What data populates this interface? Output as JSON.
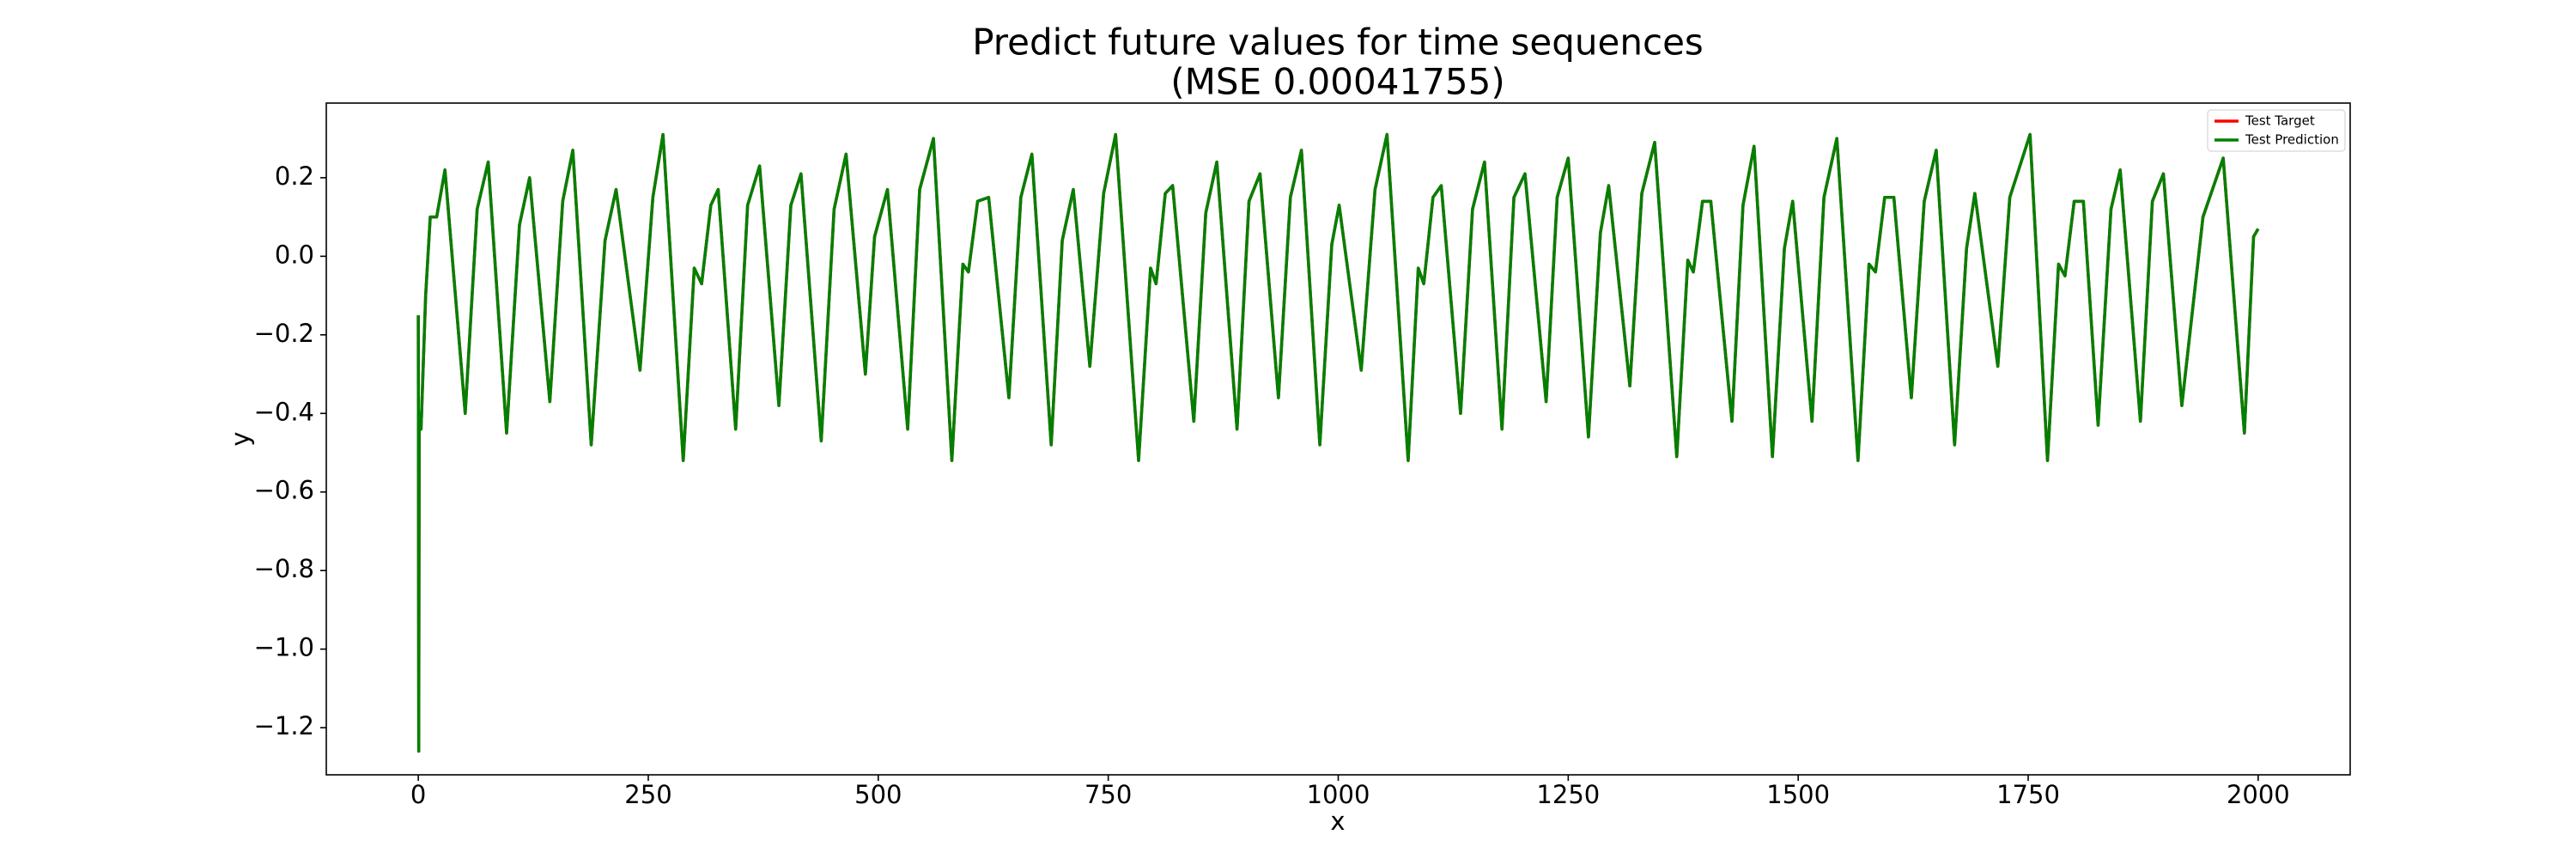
{
  "chart_data": {
    "type": "line",
    "title": "Predict future values for time sequences",
    "subtitle": "(MSE 0.00041755)",
    "x_label": "x",
    "y_label": "y",
    "xlim": [
      -100,
      2100
    ],
    "ylim": [
      -1.32,
      0.39
    ],
    "xticks": [
      0,
      250,
      500,
      750,
      1000,
      1250,
      1500,
      1750,
      2000
    ],
    "yticks": [
      {
        "value": -1.2,
        "label": "−1.2"
      },
      {
        "value": -1.0,
        "label": "−1.0"
      },
      {
        "value": -0.8,
        "label": "−0.8"
      },
      {
        "value": -0.6,
        "label": "−0.6"
      },
      {
        "value": -0.4,
        "label": "−0.4"
      },
      {
        "value": -0.2,
        "label": "−0.2"
      },
      {
        "value": 0,
        "label": "0.0"
      },
      0.2
    ],
    "legend": "upper right",
    "x": [
      0,
      0.5,
      1,
      3,
      8,
      13,
      20,
      29,
      51,
      64,
      76,
      96,
      110,
      121,
      143,
      157,
      168,
      188,
      203,
      215,
      241,
      255,
      266,
      288,
      300,
      308,
      318,
      326,
      345,
      358,
      371,
      392,
      405,
      416,
      438,
      452,
      465,
      486,
      496,
      510,
      532,
      545,
      560,
      580,
      592,
      598,
      608,
      620,
      642,
      655,
      667,
      688,
      700,
      712,
      730,
      745,
      758,
      783,
      796,
      802,
      812,
      820,
      843,
      856,
      868,
      890,
      903,
      915,
      935,
      948,
      960,
      980,
      993,
      1001,
      1025,
      1040,
      1053,
      1076,
      1087,
      1093,
      1103,
      1112,
      1133,
      1146,
      1159,
      1178,
      1191,
      1203,
      1226,
      1238,
      1250,
      1272,
      1285,
      1294,
      1317,
      1330,
      1344,
      1368,
      1380,
      1386,
      1396,
      1405,
      1428,
      1440,
      1452,
      1472,
      1485,
      1494,
      1515,
      1528,
      1542,
      1565,
      1577,
      1584,
      1594,
      1604,
      1623,
      1637,
      1650,
      1670,
      1683,
      1692,
      1717,
      1730,
      1752,
      1771,
      1783,
      1790,
      1800,
      1810,
      1826,
      1840,
      1850,
      1872,
      1885,
      1897,
      1917,
      1940,
      1962,
      1985,
      1995,
      2000
    ],
    "series": [
      {
        "name": "Test Target",
        "color": "#ff0000",
        "values": [
          -0.15,
          -1.26,
          -0.4,
          -0.44,
          -0.1,
          0.1,
          0.1,
          0.22,
          -0.4,
          0.12,
          0.24,
          -0.45,
          0.08,
          0.2,
          -0.37,
          0.14,
          0.27,
          -0.48,
          0.04,
          0.17,
          -0.29,
          0.15,
          0.31,
          -0.52,
          -0.03,
          -0.07,
          0.13,
          0.17,
          -0.44,
          0.13,
          0.23,
          -0.38,
          0.13,
          0.21,
          -0.47,
          0.12,
          0.26,
          -0.3,
          0.05,
          0.17,
          -0.44,
          0.17,
          0.3,
          -0.52,
          -0.02,
          -0.04,
          0.14,
          0.15,
          -0.36,
          0.15,
          0.26,
          -0.48,
          0.04,
          0.17,
          -0.28,
          0.16,
          0.31,
          -0.52,
          -0.03,
          -0.07,
          0.16,
          0.18,
          -0.42,
          0.11,
          0.24,
          -0.44,
          0.14,
          0.21,
          -0.36,
          0.15,
          0.27,
          -0.48,
          0.03,
          0.13,
          -0.29,
          0.17,
          0.31,
          -0.52,
          -0.03,
          -0.07,
          0.15,
          0.18,
          -0.4,
          0.12,
          0.24,
          -0.44,
          0.15,
          0.21,
          -0.37,
          0.15,
          0.25,
          -0.46,
          0.06,
          0.18,
          -0.33,
          0.16,
          0.29,
          -0.51,
          -0.01,
          -0.04,
          0.14,
          0.14,
          -0.42,
          0.13,
          0.28,
          -0.51,
          0.02,
          0.14,
          -0.42,
          0.15,
          0.3,
          -0.52,
          -0.02,
          -0.04,
          0.15,
          0.15,
          -0.36,
          0.14,
          0.27,
          -0.48,
          0.02,
          0.16,
          -0.28,
          0.15,
          0.31,
          -0.52,
          -0.02,
          -0.05,
          0.14,
          0.14,
          -0.43,
          0.12,
          0.22,
          -0.42,
          0.14,
          0.21,
          -0.38,
          0.1,
          0.25,
          -0.45,
          0.05,
          0.07
        ]
      },
      {
        "name": "Test Prediction",
        "color": "#008000",
        "values": [
          -0.15,
          -1.26,
          -0.4,
          -0.44,
          -0.1,
          0.1,
          0.1,
          0.22,
          -0.4,
          0.12,
          0.24,
          -0.45,
          0.08,
          0.2,
          -0.37,
          0.14,
          0.27,
          -0.48,
          0.04,
          0.17,
          -0.29,
          0.15,
          0.31,
          -0.52,
          -0.03,
          -0.07,
          0.13,
          0.17,
          -0.44,
          0.13,
          0.23,
          -0.38,
          0.13,
          0.21,
          -0.47,
          0.12,
          0.26,
          -0.3,
          0.05,
          0.17,
          -0.44,
          0.17,
          0.3,
          -0.52,
          -0.02,
          -0.04,
          0.14,
          0.15,
          -0.36,
          0.15,
          0.26,
          -0.48,
          0.04,
          0.17,
          -0.28,
          0.16,
          0.31,
          -0.52,
          -0.03,
          -0.07,
          0.16,
          0.18,
          -0.42,
          0.11,
          0.24,
          -0.44,
          0.14,
          0.21,
          -0.36,
          0.15,
          0.27,
          -0.48,
          0.03,
          0.13,
          -0.29,
          0.17,
          0.31,
          -0.52,
          -0.03,
          -0.07,
          0.15,
          0.18,
          -0.4,
          0.12,
          0.24,
          -0.44,
          0.15,
          0.21,
          -0.37,
          0.15,
          0.25,
          -0.46,
          0.06,
          0.18,
          -0.33,
          0.16,
          0.29,
          -0.51,
          -0.01,
          -0.04,
          0.14,
          0.14,
          -0.42,
          0.13,
          0.28,
          -0.51,
          0.02,
          0.14,
          -0.42,
          0.15,
          0.3,
          -0.52,
          -0.02,
          -0.04,
          0.15,
          0.15,
          -0.36,
          0.14,
          0.27,
          -0.48,
          0.02,
          0.16,
          -0.28,
          0.15,
          0.31,
          -0.52,
          -0.02,
          -0.05,
          0.14,
          0.14,
          -0.43,
          0.12,
          0.22,
          -0.42,
          0.14,
          0.21,
          -0.38,
          0.1,
          0.25,
          -0.45,
          0.05,
          0.07
        ]
      }
    ]
  }
}
